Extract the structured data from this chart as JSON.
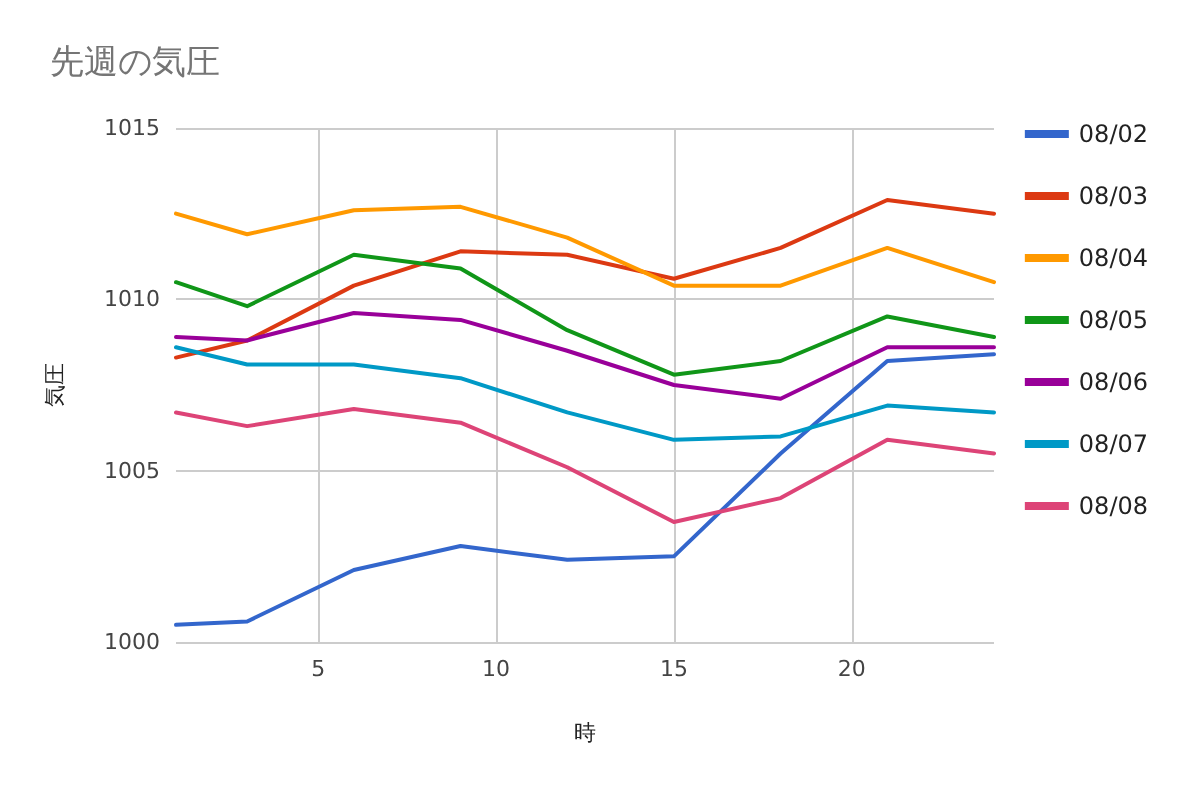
{
  "chart_data": {
    "type": "line",
    "title": "先週の気圧",
    "xlabel": "時",
    "ylabel": "気圧",
    "x": [
      1,
      3,
      6,
      9,
      12,
      15,
      18,
      21,
      24
    ],
    "xlim": [
      1,
      24
    ],
    "xticks": [
      5,
      10,
      15,
      20
    ],
    "ylim": [
      1000,
      1015
    ],
    "yticks": [
      1000,
      1005,
      1010,
      1015
    ],
    "grid": true,
    "legend": "right",
    "marker": "none",
    "series": [
      {
        "name": "08/02",
        "color": "#3366cc",
        "values": [
          1000.5,
          1000.6,
          1002.1,
          1002.8,
          1002.4,
          1002.5,
          1005.5,
          1008.2,
          1008.4
        ]
      },
      {
        "name": "08/03",
        "color": "#dc3912",
        "values": [
          1008.3,
          1008.8,
          1010.4,
          1011.4,
          1011.3,
          1010.6,
          1011.5,
          1012.9,
          1012.5
        ]
      },
      {
        "name": "08/04",
        "color": "#ff9900",
        "values": [
          1012.5,
          1011.9,
          1012.6,
          1012.7,
          1011.8,
          1010.4,
          1010.4,
          1011.5,
          1010.5
        ]
      },
      {
        "name": "08/05",
        "color": "#109618",
        "values": [
          1010.5,
          1009.8,
          1011.3,
          1010.9,
          1009.1,
          1007.8,
          1008.2,
          1009.5,
          1008.9
        ]
      },
      {
        "name": "08/06",
        "color": "#990099",
        "values": [
          1008.9,
          1008.8,
          1009.6,
          1009.4,
          1008.5,
          1007.5,
          1007.1,
          1008.6,
          1008.6
        ]
      },
      {
        "name": "08/07",
        "color": "#0099c6",
        "values": [
          1008.6,
          1008.1,
          1008.1,
          1007.7,
          1006.7,
          1005.9,
          1006.0,
          1006.9,
          1006.7
        ]
      },
      {
        "name": "08/08",
        "color": "#dd4477",
        "values": [
          1006.7,
          1006.3,
          1006.8,
          1006.4,
          1005.1,
          1003.5,
          1004.2,
          1005.9,
          1005.5
        ]
      }
    ]
  }
}
